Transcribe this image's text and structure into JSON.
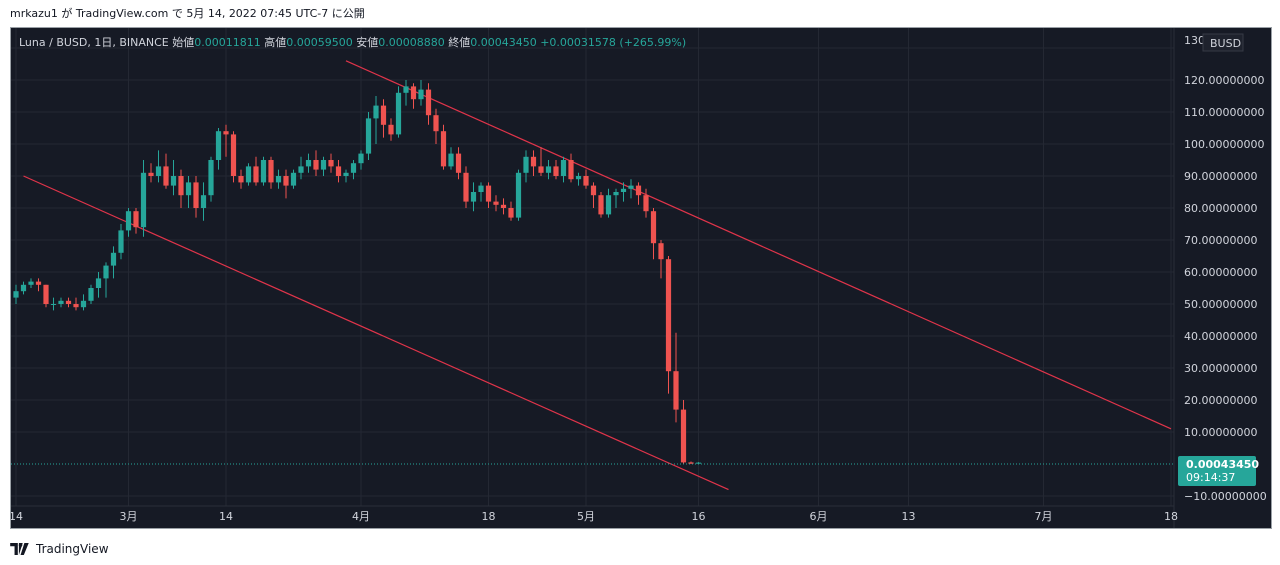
{
  "header": {
    "publish_text": "mrkazu1 が TradingView.com で 5月 14, 2022 07:45 UTC-7 に公開"
  },
  "footer": {
    "brand": "TradingView"
  },
  "colors": {
    "background": "#161a25",
    "grid": "#242833",
    "up": "#26a69a",
    "down": "#ef5350",
    "trendline": "#e0344a",
    "axis_text": "#d1d4dc",
    "price_tag": "#26a69a"
  },
  "chart_data": {
    "type": "candlestick",
    "symbol_line": {
      "symbol": "Luna / BUSD, 1日, BINANCE",
      "open_label": "始値",
      "open_value": "0.00011811",
      "high_label": "高値",
      "high_value": "0.00059500",
      "low_label": "安値",
      "low_value": "0.00008880",
      "close_label": "終値",
      "close_value": "0.00043450",
      "change": "+0.00031578 (+265.99%)"
    },
    "currency": "BUSD",
    "ylim": [
      -10,
      130
    ],
    "y_ticks": [
      "130",
      "120.00000000",
      "110.00000000",
      "100.00000000",
      "90.00000000",
      "80.00000000",
      "70.00000000",
      "60.00000000",
      "50.00000000",
      "40.00000000",
      "30.00000000",
      "20.00000000",
      "10.00000000",
      "−10.00000000"
    ],
    "y_tick_values": [
      130,
      120,
      110,
      100,
      90,
      80,
      70,
      60,
      50,
      40,
      30,
      20,
      10,
      -10
    ],
    "x_ticks": [
      {
        "label": "14",
        "date": "2022-02-14"
      },
      {
        "label": "3月",
        "date": "2022-03-01"
      },
      {
        "label": "14",
        "date": "2022-03-14"
      },
      {
        "label": "4月",
        "date": "2022-04-01"
      },
      {
        "label": "18",
        "date": "2022-04-18"
      },
      {
        "label": "5月",
        "date": "2022-05-01"
      },
      {
        "label": "16",
        "date": "2022-05-16"
      },
      {
        "label": "6月",
        "date": "2022-06-01"
      },
      {
        "label": "13",
        "date": "2022-06-13"
      },
      {
        "label": "7月",
        "date": "2022-07-01"
      },
      {
        "label": "18",
        "date": "2022-07-18"
      }
    ],
    "last_price": {
      "value": 0.0004345,
      "label": "0.00043450",
      "countdown": "09:14:37"
    },
    "first_date": "2022-02-14",
    "candles": [
      [
        52,
        56,
        50,
        54
      ],
      [
        54,
        57,
        53,
        56
      ],
      [
        56,
        58,
        55,
        57
      ],
      [
        57,
        58,
        54,
        56
      ],
      [
        56,
        56,
        49,
        50
      ],
      [
        50,
        52,
        48,
        50
      ],
      [
        50,
        52,
        49,
        51
      ],
      [
        51,
        52,
        49,
        50
      ],
      [
        50,
        52,
        48,
        49
      ],
      [
        49,
        53,
        48,
        51
      ],
      [
        51,
        56,
        50,
        55
      ],
      [
        55,
        60,
        52,
        58
      ],
      [
        58,
        63,
        52,
        62
      ],
      [
        62,
        68,
        58,
        66
      ],
      [
        66,
        75,
        64,
        73
      ],
      [
        73,
        80,
        71,
        79
      ],
      [
        79,
        80,
        72,
        74
      ],
      [
        74,
        95,
        71,
        91
      ],
      [
        91,
        94,
        88,
        90
      ],
      [
        90,
        98,
        88,
        93
      ],
      [
        93,
        97,
        86,
        87
      ],
      [
        87,
        95,
        84,
        90
      ],
      [
        90,
        92,
        80,
        84
      ],
      [
        84,
        90,
        80,
        88
      ],
      [
        88,
        90,
        77,
        80
      ],
      [
        80,
        88,
        76,
        84
      ],
      [
        84,
        96,
        82,
        95
      ],
      [
        95,
        105,
        92,
        104
      ],
      [
        104,
        106,
        96,
        103
      ],
      [
        103,
        104,
        88,
        90
      ],
      [
        90,
        92,
        86,
        88
      ],
      [
        88,
        94,
        87,
        93
      ],
      [
        93,
        96,
        87,
        88
      ],
      [
        88,
        96,
        87,
        95
      ],
      [
        95,
        96,
        86,
        88
      ],
      [
        88,
        92,
        86,
        90
      ],
      [
        90,
        92,
        83,
        87
      ],
      [
        87,
        92,
        86,
        91
      ],
      [
        91,
        96,
        89,
        93
      ],
      [
        93,
        97,
        91,
        95
      ],
      [
        95,
        98,
        90,
        92
      ],
      [
        92,
        96,
        90,
        95
      ],
      [
        95,
        97,
        91,
        93
      ],
      [
        93,
        95,
        88,
        90
      ],
      [
        90,
        92,
        88,
        91
      ],
      [
        91,
        95,
        89,
        94
      ],
      [
        94,
        98,
        92,
        97
      ],
      [
        97,
        110,
        95,
        108
      ],
      [
        108,
        115,
        100,
        112
      ],
      [
        112,
        114,
        102,
        106
      ],
      [
        106,
        108,
        101,
        103
      ],
      [
        103,
        118,
        102,
        116
      ],
      [
        116,
        120,
        112,
        118
      ],
      [
        118,
        119,
        111,
        114
      ],
      [
        114,
        120,
        112,
        117
      ],
      [
        117,
        119,
        106,
        109
      ],
      [
        109,
        111,
        100,
        104
      ],
      [
        104,
        106,
        92,
        93
      ],
      [
        93,
        99,
        92,
        97
      ],
      [
        97,
        99,
        89,
        91
      ],
      [
        91,
        93,
        80,
        82
      ],
      [
        82,
        88,
        79,
        85
      ],
      [
        85,
        88,
        82,
        87
      ],
      [
        87,
        88,
        80,
        82
      ],
      [
        82,
        84,
        79,
        81
      ],
      [
        81,
        83,
        78,
        80
      ],
      [
        80,
        82,
        76,
        77
      ],
      [
        77,
        92,
        76,
        91
      ],
      [
        91,
        98,
        88,
        96
      ],
      [
        96,
        98,
        90,
        93
      ],
      [
        93,
        99,
        90,
        91
      ],
      [
        91,
        95,
        89,
        93
      ],
      [
        93,
        95,
        89,
        90
      ],
      [
        90,
        96,
        88,
        95
      ],
      [
        95,
        97,
        88,
        89
      ],
      [
        89,
        91,
        87,
        90
      ],
      [
        90,
        92,
        86,
        87
      ],
      [
        87,
        88,
        80,
        84
      ],
      [
        84,
        85,
        77,
        78
      ],
      [
        78,
        86,
        77,
        84
      ],
      [
        84,
        86,
        80,
        85
      ],
      [
        85,
        88,
        82,
        86
      ],
      [
        86,
        89,
        83,
        87
      ],
      [
        87,
        88,
        81,
        84
      ],
      [
        84,
        86,
        77,
        79
      ],
      [
        79,
        80,
        64,
        69
      ],
      [
        69,
        70,
        58,
        64
      ],
      [
        64,
        65,
        22,
        29
      ],
      [
        29,
        41,
        13,
        17
      ],
      [
        17,
        20,
        0.1,
        0.5
      ],
      [
        0.5,
        0.8,
        0.05,
        0.1
      ],
      [
        0.1,
        0.6,
        0.09,
        0.43
      ]
    ],
    "trendlines": [
      {
        "from": [
          "2022-02-15",
          90
        ],
        "to": [
          "2022-05-20",
          -8
        ]
      },
      {
        "from": [
          "2022-03-30",
          126
        ],
        "to": [
          "2022-07-18",
          11
        ]
      }
    ]
  }
}
